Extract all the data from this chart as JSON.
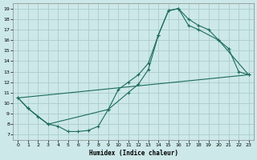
{
  "xlabel": "Humidex (Indice chaleur)",
  "background_color": "#cde8e8",
  "grid_color": "#aacccc",
  "line_color": "#1a6b5a",
  "xlim": [
    -0.5,
    23.5
  ],
  "ylim": [
    6.5,
    19.5
  ],
  "xticks": [
    0,
    1,
    2,
    3,
    4,
    5,
    6,
    7,
    8,
    9,
    10,
    11,
    12,
    13,
    14,
    15,
    16,
    17,
    18,
    19,
    20,
    21,
    22,
    23
  ],
  "yticks": [
    7,
    8,
    9,
    10,
    11,
    12,
    13,
    14,
    15,
    16,
    17,
    18,
    19
  ],
  "line1_x": [
    0,
    1,
    2,
    3,
    4,
    5,
    6,
    7,
    8,
    9,
    10,
    11,
    12,
    13,
    14,
    15,
    16,
    17,
    18,
    19,
    20,
    21,
    22,
    23
  ],
  "line1_y": [
    10.5,
    9.5,
    8.7,
    8.0,
    7.8,
    7.3,
    7.3,
    7.4,
    7.8,
    9.4,
    11.3,
    12.0,
    12.7,
    13.8,
    16.5,
    18.8,
    19.0,
    18.0,
    17.4,
    17.0,
    16.0,
    15.2,
    13.0,
    12.7
  ],
  "line2_x": [
    0,
    1,
    3,
    9,
    11,
    12,
    13,
    14,
    15,
    16,
    17,
    18,
    20,
    23
  ],
  "line2_y": [
    10.5,
    9.5,
    8.0,
    9.4,
    11.0,
    11.8,
    13.2,
    16.5,
    18.8,
    19.0,
    17.4,
    17.0,
    16.0,
    12.7
  ],
  "line3_x": [
    0,
    23
  ],
  "line3_y": [
    10.5,
    12.7
  ]
}
